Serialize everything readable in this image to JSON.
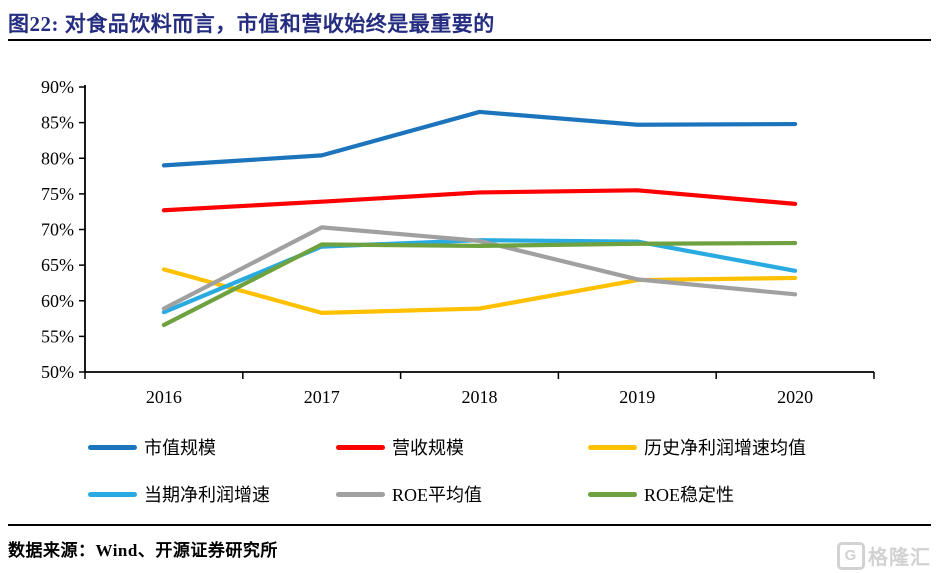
{
  "header": {
    "title": "图22:  对食品饮料而言，市值和营收始终是最重要的"
  },
  "footer": {
    "source": "数据来源：Wind、开源证券研究所",
    "watermark": "格隆汇",
    "watermark_initial": "G"
  },
  "colors": {
    "title": "#252d80",
    "axis": "#000000",
    "watermark": "#d2d2d2"
  },
  "chart_data": {
    "type": "line",
    "x_labels": [
      "2016",
      "2017",
      "2018",
      "2019",
      "2020"
    ],
    "ylim": [
      50,
      90
    ],
    "ytick_step": 5,
    "ytick_labels": [
      "90%",
      "85%",
      "80%",
      "75%",
      "70%",
      "65%",
      "60%",
      "55%",
      "50%"
    ],
    "grid": false,
    "legend_position": "bottom",
    "series": [
      {
        "name": "市值规模",
        "color": "#1C75BC",
        "values": [
          79.0,
          80.4,
          86.5,
          84.7,
          84.8
        ]
      },
      {
        "name": "营收规模",
        "color": "#FF0000",
        "values": [
          72.7,
          73.9,
          75.2,
          75.5,
          73.6
        ]
      },
      {
        "name": "历史净利润增速均值",
        "color": "#FFC000",
        "values": [
          64.4,
          58.3,
          58.9,
          62.9,
          63.2
        ]
      },
      {
        "name": "当期净利润增速",
        "color": "#29ABE2",
        "values": [
          58.4,
          67.6,
          68.5,
          68.3,
          64.2
        ]
      },
      {
        "name": "ROE平均值",
        "color": "#A0A0A0",
        "values": [
          58.9,
          70.3,
          68.4,
          63.0,
          60.9
        ]
      },
      {
        "name": "ROE稳定性",
        "color": "#6EA13F",
        "values": [
          56.6,
          67.9,
          67.7,
          68.0,
          68.1
        ]
      }
    ]
  }
}
